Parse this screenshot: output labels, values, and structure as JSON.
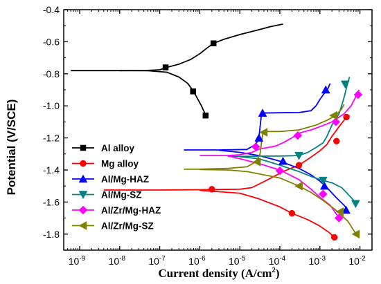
{
  "chart_data": {
    "type": "line",
    "xlabel": "Current density (A/cm",
    "xlabel_sup": "2",
    "xlabel_close": ")",
    "ylabel": "Potential (V/SCE)",
    "x_scale": "log",
    "xlim": [
      4e-10,
      0.02
    ],
    "ylim": [
      -1.9,
      -0.4
    ],
    "x_ticks": [
      {
        "value": 1e-09,
        "base": "10",
        "exp": "-9"
      },
      {
        "value": 1e-08,
        "base": "10",
        "exp": "-8"
      },
      {
        "value": 1e-07,
        "base": "10",
        "exp": "-7"
      },
      {
        "value": 1e-06,
        "base": "10",
        "exp": "-6"
      },
      {
        "value": 1e-05,
        "base": "10",
        "exp": "-5"
      },
      {
        "value": 0.0001,
        "base": "10",
        "exp": "-4"
      },
      {
        "value": 0.001,
        "base": "10",
        "exp": "-3"
      },
      {
        "value": 0.01,
        "base": "10",
        "exp": "-2"
      }
    ],
    "y_ticks": [
      {
        "value": -0.4,
        "label": "-0.4"
      },
      {
        "value": -0.6,
        "label": "-0.6"
      },
      {
        "value": -0.8,
        "label": "-0.8"
      },
      {
        "value": -1.0,
        "label": "-1.0"
      },
      {
        "value": -1.2,
        "label": "-1.2"
      },
      {
        "value": -1.4,
        "label": "-1.4"
      },
      {
        "value": -1.6,
        "label": "-1.6"
      },
      {
        "value": -1.8,
        "label": "-1.8"
      }
    ],
    "legend_position": "bottom-left",
    "series": [
      {
        "name": "Al alloy",
        "color": "#000000",
        "marker": "square",
        "anodic": [
          [
            6e-10,
            -0.78
          ],
          [
            1e-08,
            -0.78
          ],
          [
            5e-08,
            -0.779
          ],
          [
            1e-07,
            -0.775
          ],
          [
            1.5e-07,
            -0.76
          ],
          [
            3e-07,
            -0.74
          ],
          [
            6e-07,
            -0.71
          ],
          [
            1e-06,
            -0.675
          ],
          [
            1.5e-06,
            -0.64
          ],
          [
            2.2e-06,
            -0.61
          ],
          [
            4e-06,
            -0.585
          ],
          [
            1e-05,
            -0.555
          ],
          [
            3e-05,
            -0.525
          ],
          [
            6e-05,
            -0.505
          ],
          [
            0.00012,
            -0.49
          ]
        ],
        "cathodic": [
          [
            1e-08,
            -0.78
          ],
          [
            5e-08,
            -0.781
          ],
          [
            1.5e-07,
            -0.79
          ],
          [
            3e-07,
            -0.82
          ],
          [
            5e-07,
            -0.86
          ],
          [
            7e-07,
            -0.91
          ],
          [
            9e-07,
            -0.96
          ],
          [
            1.1e-06,
            -1.0
          ],
          [
            1.3e-06,
            -1.04
          ],
          [
            1.4e-06,
            -1.06
          ]
        ],
        "markers": [
          [
            1.4e-07,
            -0.76
          ],
          [
            2.2e-06,
            -0.61
          ],
          [
            6.8e-07,
            -0.91
          ],
          [
            1.4e-06,
            -1.06
          ]
        ]
      },
      {
        "name": "Mg alloy",
        "color": "#ff0000",
        "marker": "circle",
        "anodic": [
          [
            4e-09,
            -1.525
          ],
          [
            1e-07,
            -1.525
          ],
          [
            1e-06,
            -1.523
          ],
          [
            1e-05,
            -1.52
          ],
          [
            2e-05,
            -1.51
          ],
          [
            3.5e-05,
            -1.48
          ],
          [
            6e-05,
            -1.45
          ],
          [
            0.00012,
            -1.41
          ],
          [
            0.0003,
            -1.37
          ],
          [
            0.0006,
            -1.32
          ],
          [
            0.001,
            -1.28
          ],
          [
            0.0015,
            -1.24
          ],
          [
            0.002,
            -1.19
          ],
          [
            0.003,
            -1.13
          ],
          [
            0.004,
            -1.09
          ],
          [
            0.005,
            -1.07
          ],
          [
            0.0055,
            -1.06
          ]
        ],
        "cathodic": [
          [
            1e-06,
            -1.527
          ],
          [
            1e-05,
            -1.545
          ],
          [
            3e-05,
            -1.58
          ],
          [
            0.0001,
            -1.63
          ],
          [
            0.0002,
            -1.67
          ],
          [
            0.0005,
            -1.71
          ],
          [
            0.001,
            -1.75
          ],
          [
            0.0017,
            -1.79
          ],
          [
            0.0023,
            -1.82
          ]
        ],
        "markers": [
          [
            2e-06,
            -1.52
          ],
          [
            0.0003,
            -1.37
          ],
          [
            0.0026,
            -1.22
          ],
          [
            0.0046,
            -1.07
          ],
          [
            0.0002,
            -1.67
          ],
          [
            0.0023,
            -1.82
          ]
        ]
      },
      {
        "name": "Al/Mg-HAZ",
        "color": "#0000ff",
        "marker": "triangle-up",
        "anodic": [
          [
            4e-07,
            -1.275
          ],
          [
            3e-06,
            -1.275
          ],
          [
            1.5e-05,
            -1.272
          ],
          [
            2.5e-05,
            -1.24
          ],
          [
            3e-05,
            -1.2
          ],
          [
            3.3e-05,
            -1.1
          ],
          [
            3.5e-05,
            -1.045
          ],
          [
            0.0001,
            -1.043
          ],
          [
            0.0003,
            -1.042
          ],
          [
            0.0006,
            -1.03
          ],
          [
            0.0008,
            -1.0
          ],
          [
            0.001,
            -0.96
          ],
          [
            0.0013,
            -0.92
          ],
          [
            0.0016,
            -0.89
          ],
          [
            0.0018,
            -0.86
          ]
        ],
        "cathodic": [
          [
            3e-06,
            -1.277
          ],
          [
            1e-05,
            -1.29
          ],
          [
            3e-05,
            -1.31
          ],
          [
            6e-05,
            -1.33
          ],
          [
            0.0001,
            -1.345
          ],
          [
            0.0003,
            -1.39
          ],
          [
            0.0006,
            -1.43
          ],
          [
            0.001,
            -1.47
          ],
          [
            0.0015,
            -1.51
          ],
          [
            0.0025,
            -1.57
          ],
          [
            0.004,
            -1.62
          ],
          [
            0.005,
            -1.65
          ]
        ],
        "markers": [
          [
            3e-05,
            -1.2
          ],
          [
            3.7e-05,
            -1.045
          ],
          [
            0.0014,
            -0.9
          ],
          [
            0.00012,
            -1.345
          ],
          [
            0.0013,
            -1.5
          ],
          [
            0.0045,
            -1.65
          ]
        ]
      },
      {
        "name": "Al/Mg-SZ",
        "color": "#008080",
        "marker": "triangle-down",
        "anodic": [
          [
            5e-06,
            -1.315
          ],
          [
            1e-05,
            -1.315
          ],
          [
            3e-05,
            -1.314
          ],
          [
            0.0001,
            -1.313
          ],
          [
            0.0003,
            -1.31
          ],
          [
            0.0005,
            -1.29
          ],
          [
            0.0008,
            -1.26
          ],
          [
            0.0012,
            -1.23
          ],
          [
            0.0015,
            -1.19
          ],
          [
            0.002,
            -1.12
          ],
          [
            0.003,
            -1.05
          ],
          [
            0.004,
            -0.95
          ],
          [
            0.0048,
            -0.87
          ],
          [
            0.0055,
            -0.82
          ]
        ],
        "cathodic": [
          [
            1e-05,
            -1.317
          ],
          [
            3e-05,
            -1.33
          ],
          [
            0.0001,
            -1.37
          ],
          [
            0.0003,
            -1.41
          ],
          [
            0.0006,
            -1.44
          ],
          [
            0.001,
            -1.46
          ],
          [
            0.002,
            -1.48
          ],
          [
            0.0035,
            -1.51
          ],
          [
            0.005,
            -1.55
          ],
          [
            0.007,
            -1.59
          ],
          [
            0.008,
            -1.61
          ]
        ],
        "markers": [
          [
            0.0003,
            -1.31
          ],
          [
            0.0043,
            -0.865
          ],
          [
            0.0012,
            -1.465
          ],
          [
            0.0078,
            -1.61
          ]
        ]
      },
      {
        "name": "Al/Zr/Mg-HAZ",
        "color": "#ff00ff",
        "marker": "diamond",
        "anodic": [
          [
            1e-06,
            -1.31
          ],
          [
            5e-06,
            -1.31
          ],
          [
            1e-05,
            -1.305
          ],
          [
            2e-05,
            -1.29
          ],
          [
            3e-05,
            -1.27
          ],
          [
            5e-05,
            -1.26
          ],
          [
            8e-05,
            -1.25
          ],
          [
            0.00012,
            -1.23
          ],
          [
            0.0002,
            -1.2
          ],
          [
            0.0003,
            -1.17
          ],
          [
            0.0006,
            -1.15
          ],
          [
            0.001,
            -1.13
          ],
          [
            0.002,
            -1.1
          ],
          [
            0.004,
            -1.05
          ],
          [
            0.006,
            -1.0
          ],
          [
            0.008,
            -0.94
          ],
          [
            0.0095,
            -0.9
          ]
        ],
        "cathodic": [
          [
            5e-06,
            -1.312
          ],
          [
            1e-05,
            -1.33
          ],
          [
            3e-05,
            -1.36
          ],
          [
            0.0001,
            -1.4
          ],
          [
            0.0003,
            -1.46
          ],
          [
            0.0006,
            -1.52
          ],
          [
            0.001,
            -1.57
          ],
          [
            0.0018,
            -1.62
          ],
          [
            0.0025,
            -1.67
          ],
          [
            0.003,
            -1.7
          ]
        ],
        "markers": [
          [
            2.5e-05,
            -1.255
          ],
          [
            0.00028,
            -1.185
          ],
          [
            0.0025,
            -1.1
          ],
          [
            0.009,
            -0.93
          ],
          [
            0.0001,
            -1.405
          ],
          [
            0.0012,
            -1.55
          ],
          [
            0.003,
            -1.7
          ]
        ]
      },
      {
        "name": "Al/Zr/Mg-SZ",
        "color": "#808000",
        "marker": "triangle-left",
        "anodic": [
          [
            4e-07,
            -1.395
          ],
          [
            1e-06,
            -1.395
          ],
          [
            5e-06,
            -1.39
          ],
          [
            1.5e-05,
            -1.38
          ],
          [
            2.5e-05,
            -1.35
          ],
          [
            3.2e-05,
            -1.3
          ],
          [
            3.6e-05,
            -1.2
          ],
          [
            3.8e-05,
            -1.16
          ],
          [
            0.0001,
            -1.16
          ],
          [
            0.0003,
            -1.15
          ],
          [
            0.0008,
            -1.12
          ],
          [
            0.0015,
            -1.09
          ],
          [
            0.0025,
            -1.06
          ],
          [
            0.0035,
            -1.02
          ],
          [
            0.004,
            -0.99
          ]
        ],
        "cathodic": [
          [
            1e-06,
            -1.397
          ],
          [
            5e-06,
            -1.4
          ],
          [
            1.5e-05,
            -1.41
          ],
          [
            4e-05,
            -1.43
          ],
          [
            0.0001,
            -1.45
          ],
          [
            0.0003,
            -1.5
          ],
          [
            0.0006,
            -1.54
          ],
          [
            0.0012,
            -1.59
          ],
          [
            0.0025,
            -1.65
          ],
          [
            0.005,
            -1.72
          ],
          [
            0.008,
            -1.8
          ]
        ],
        "markers": [
          [
            2.7e-05,
            -1.35
          ],
          [
            4e-05,
            -1.165
          ],
          [
            0.0022,
            -1.06
          ],
          [
            0.0003,
            -1.5
          ],
          [
            0.0032,
            -1.66
          ],
          [
            0.008,
            -1.8
          ]
        ]
      }
    ]
  }
}
